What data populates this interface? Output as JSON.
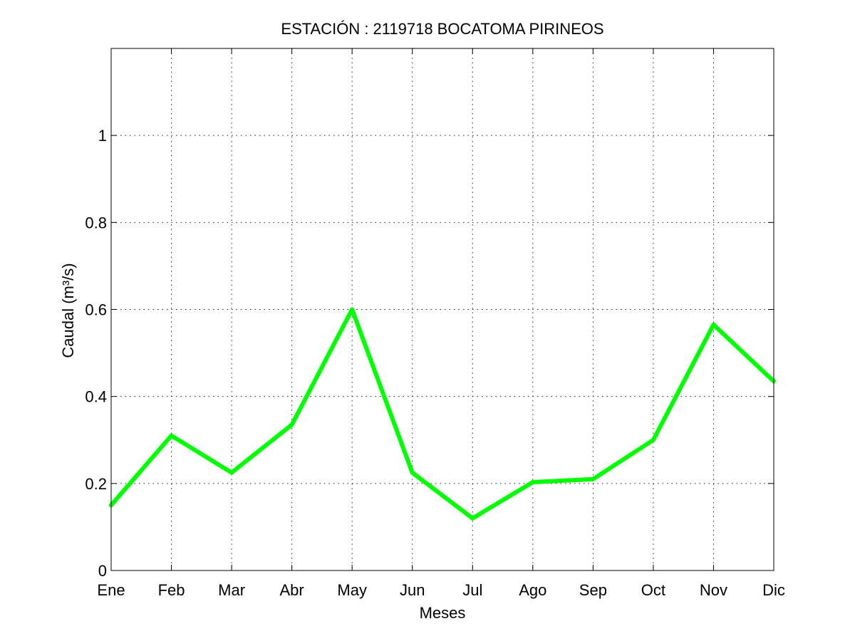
{
  "chart_data": {
    "type": "line",
    "title": "ESTACIÓN :  2119718  BOCATOMA PIRINEOS",
    "xlabel": "Meses",
    "ylabel": "Caudal (m³/s)",
    "categories": [
      "Ene",
      "Feb",
      "Mar",
      "Abr",
      "May",
      "Jun",
      "Jul",
      "Ago",
      "Sep",
      "Oct",
      "Nov",
      "Dic"
    ],
    "series": [
      {
        "color": "#00ff00",
        "values": [
          0.15,
          0.31,
          0.225,
          0.335,
          0.6,
          0.225,
          0.12,
          0.203,
          0.21,
          0.3,
          0.565,
          0.435
        ]
      }
    ],
    "ylim": [
      0,
      1.2
    ],
    "yticks": [
      0,
      0.2,
      0.4,
      0.6,
      0.8,
      1
    ],
    "ytick_labels": [
      "0",
      "0.2",
      "0.4",
      "0.6",
      "0.8",
      "1"
    ],
    "grid": true
  }
}
